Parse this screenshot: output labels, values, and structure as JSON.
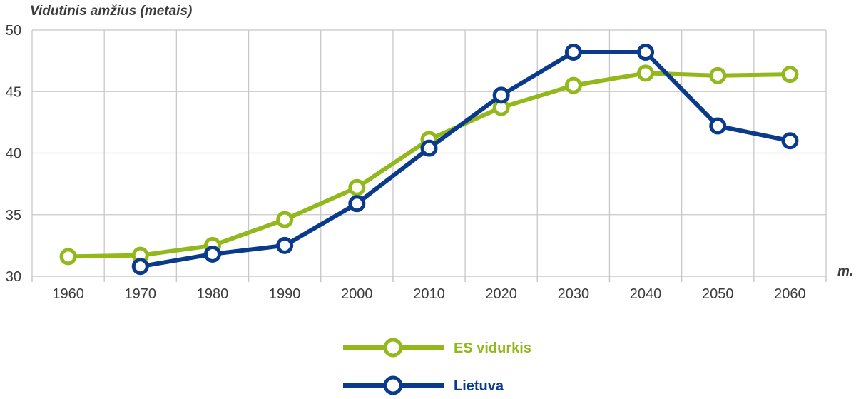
{
  "chart_data": {
    "type": "line",
    "ylabel": "Vidutinis amžius (metais)",
    "xlabel": "m.",
    "x": [
      1960,
      1970,
      1980,
      1990,
      2000,
      2010,
      2020,
      2030,
      2040,
      2050,
      2060
    ],
    "x_tick_labels": [
      "1960",
      "1970",
      "1980",
      "1990",
      "2000",
      "2010",
      "2020",
      "2030",
      "2040",
      "2050",
      "2060"
    ],
    "y_ticks": [
      30,
      35,
      40,
      45,
      50
    ],
    "y_tick_labels": [
      "30",
      "35",
      "40",
      "45",
      "50"
    ],
    "ylim": [
      30,
      50
    ],
    "grid": true,
    "legend_position": "bottom-center",
    "series": [
      {
        "name": "ES vidurkis",
        "color": "#93b81c",
        "values": [
          31.6,
          31.7,
          32.5,
          34.6,
          37.2,
          41.1,
          43.7,
          45.5,
          46.5,
          46.3,
          46.4
        ]
      },
      {
        "name": "Lietuva",
        "color": "#0a3a8c",
        "values": [
          null,
          30.8,
          31.8,
          32.5,
          35.9,
          40.4,
          44.7,
          48.2,
          48.2,
          42.2,
          41.0
        ]
      }
    ]
  }
}
